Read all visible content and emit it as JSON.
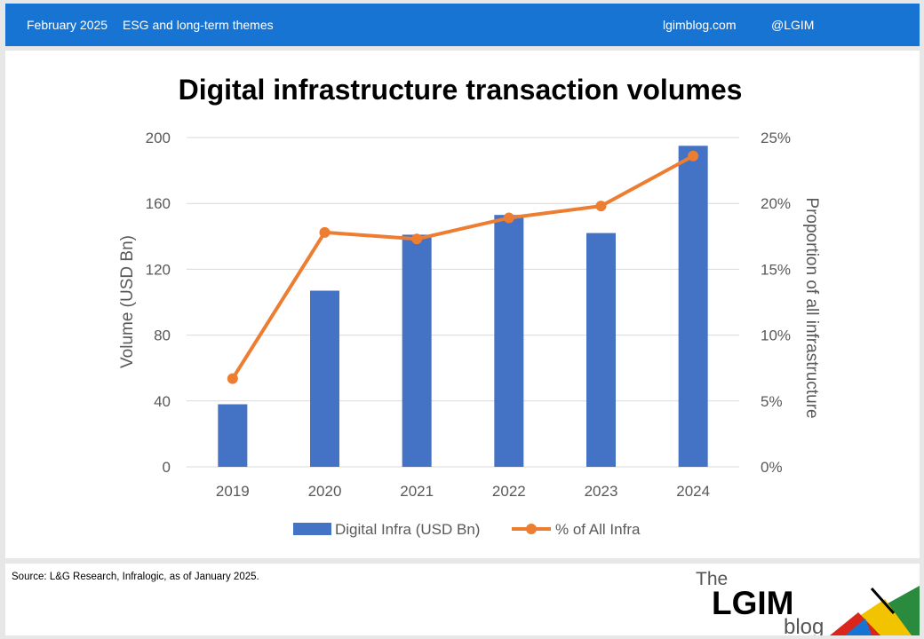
{
  "header": {
    "date": "February 2025",
    "category": "ESG and long-term themes",
    "site": "lgimblog.com",
    "handle": "@LGIM"
  },
  "chart_data": {
    "type": "bar",
    "title": "Digital infrastructure transaction volumes",
    "categories": [
      "2019",
      "2020",
      "2021",
      "2022",
      "2023",
      "2024"
    ],
    "ylabel": "Volume (USD Bn)",
    "ylabel_right": "Proportion of all infrastructure",
    "ylim": [
      0,
      200
    ],
    "yticks": [
      "0",
      "40",
      "80",
      "120",
      "160",
      "200"
    ],
    "ylim_right": [
      0,
      25
    ],
    "yticks_right": [
      "0%",
      "5%",
      "10%",
      "15%",
      "20%",
      "25%"
    ],
    "grid": true,
    "legend_position": "bottom",
    "series": [
      {
        "name": "Digital Infra (USD Bn)",
        "type": "bar",
        "axis": "left",
        "color": "#4472c4",
        "values": [
          38,
          107,
          141,
          153,
          142,
          195
        ]
      },
      {
        "name": "% of All Infra",
        "type": "line",
        "axis": "right",
        "color": "#ed7d31",
        "values": [
          6.7,
          17.8,
          17.3,
          18.9,
          19.8,
          23.6
        ]
      }
    ]
  },
  "footer": {
    "source": "Source: L&G Research, Infralogic, as of January 2025.",
    "logo_the": "The",
    "logo_main": "LGIM",
    "logo_blog": "blog"
  }
}
